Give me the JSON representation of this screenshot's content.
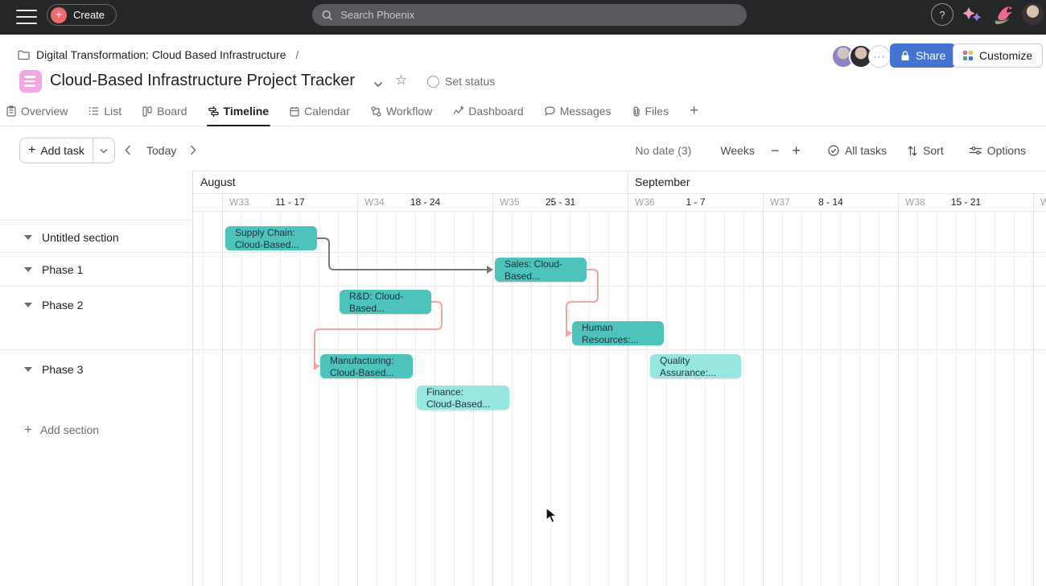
{
  "topbar": {
    "create_label": "Create",
    "search_placeholder": "Search Phoenix",
    "help_label": "?"
  },
  "header": {
    "breadcrumb": "Digital Transformation: Cloud Based Infrastructure",
    "breadcrumb_separator": "/",
    "more_label": "···",
    "share_label": "Share",
    "customize_label": "Customize",
    "title": "Cloud-Based Infrastructure Project Tracker",
    "set_status_label": "Set status"
  },
  "tabs": [
    {
      "label": "Overview"
    },
    {
      "label": "List"
    },
    {
      "label": "Board"
    },
    {
      "label": "Timeline"
    },
    {
      "label": "Calendar"
    },
    {
      "label": "Workflow"
    },
    {
      "label": "Dashboard"
    },
    {
      "label": "Messages"
    },
    {
      "label": "Files"
    }
  ],
  "toolbar": {
    "add_task_label": "Add task",
    "today_label": "Today",
    "no_date_label": "No date (3)",
    "zoom_label": "Weeks",
    "filter_label": "All tasks",
    "sort_label": "Sort",
    "options_label": "Options"
  },
  "timeline": {
    "months": [
      {
        "label": "August"
      },
      {
        "label": "September"
      }
    ],
    "weeks": [
      {
        "week": "W33",
        "range": "11 - 17"
      },
      {
        "week": "W34",
        "range": "18 - 24"
      },
      {
        "week": "W35",
        "range": "25 - 31"
      },
      {
        "week": "W36",
        "range": "1 - 7"
      },
      {
        "week": "W37",
        "range": "8 - 14"
      },
      {
        "week": "W38",
        "range": "15 - 21"
      }
    ],
    "partial_week_label": "W",
    "sections": [
      {
        "label": "Untitled section"
      },
      {
        "label": "Phase 1"
      },
      {
        "label": "Phase 2"
      },
      {
        "label": "Phase 3"
      }
    ],
    "add_section_label": "Add section",
    "tasks": [
      {
        "name": "supply-chain",
        "line1": "Supply Chain:",
        "line2": "Cloud-Based..."
      },
      {
        "name": "sales",
        "line1": "Sales: Cloud-",
        "line2": "Based..."
      },
      {
        "name": "rd",
        "line1": "R&D: Cloud-",
        "line2": "Based..."
      },
      {
        "name": "human-resources",
        "line1": "Human",
        "line2": "Resources:..."
      },
      {
        "name": "manufacturing",
        "line1": "Manufacturing:",
        "line2": "Cloud-Based..."
      },
      {
        "name": "quality-assurance",
        "line1": "Quality",
        "line2": "Assurance:..."
      },
      {
        "name": "finance",
        "line1": "Finance:",
        "line2": "Cloud-Based..."
      }
    ],
    "colors": {
      "task": "#4dc3bb",
      "task_light": "#97e7e0",
      "dependency_pink": "#f2a3a3",
      "dependency_gray": "#75797c"
    }
  }
}
